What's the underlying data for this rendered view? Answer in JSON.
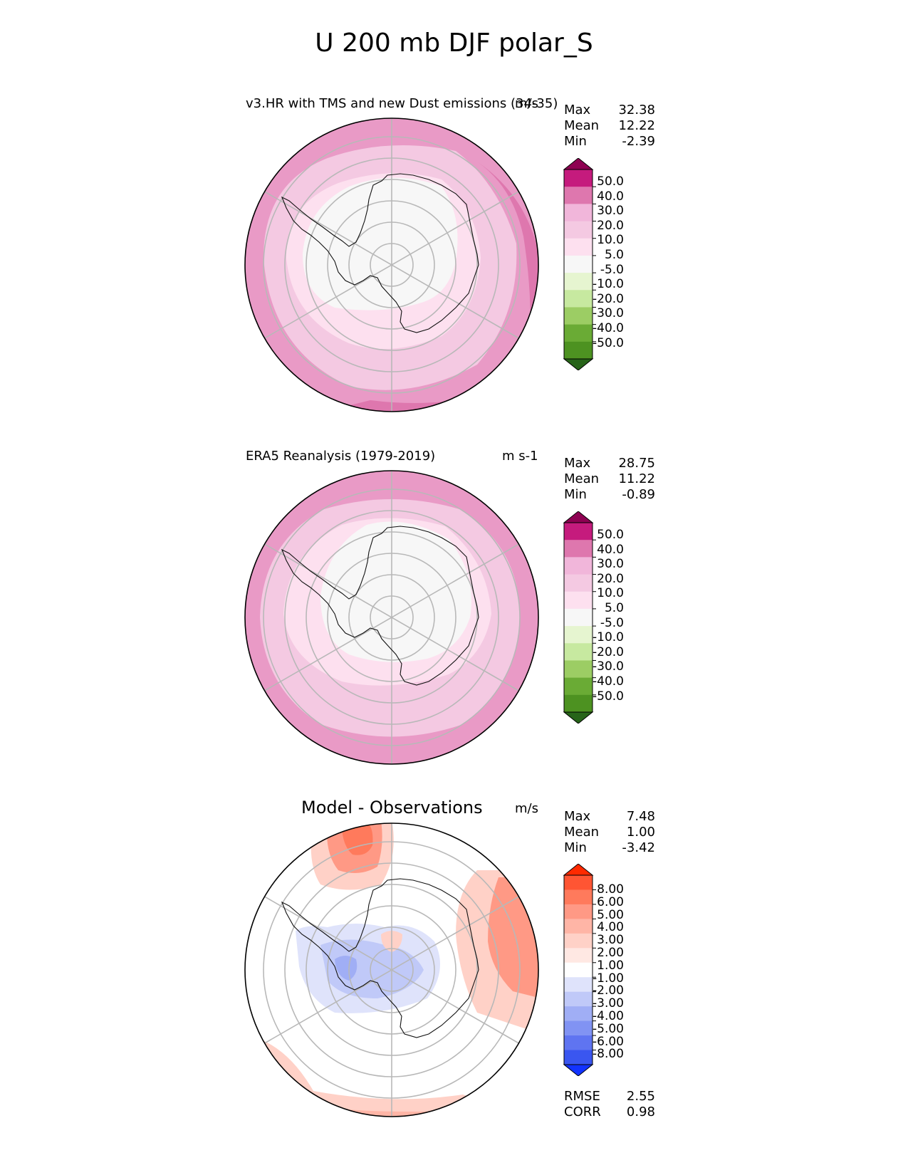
{
  "figure": {
    "title": "U 200 mb DJF polar_S"
  },
  "panels": [
    {
      "title": "v3.HR with TMS and new Dust emissions (34-35)",
      "units": "m/s",
      "stats": [
        {
          "label": "Max",
          "value": "32.38"
        },
        {
          "label": "Mean",
          "value": "12.22"
        },
        {
          "label": "Min",
          "value": "-2.39"
        }
      ]
    },
    {
      "title": "ERA5 Reanalysis (1979-2019)",
      "units": "m s-1",
      "stats": [
        {
          "label": "Max",
          "value": "28.75"
        },
        {
          "label": "Mean",
          "value": "11.22"
        },
        {
          "label": "Min",
          "value": "-0.89"
        }
      ]
    },
    {
      "title": "Model - Observations",
      "units": "m/s",
      "stats": [
        {
          "label": "Max",
          "value": "7.48"
        },
        {
          "label": "Mean",
          "value": "1.00"
        },
        {
          "label": "Min",
          "value": "-3.42"
        }
      ],
      "metrics": [
        {
          "label": "RMSE",
          "value": "2.55"
        },
        {
          "label": "CORR",
          "value": "0.98"
        }
      ]
    }
  ],
  "colorbars": {
    "field": {
      "ticks": [
        "50.0",
        "40.0",
        "30.0",
        "20.0",
        "10.0",
        "5.0",
        "-5.0",
        "-10.0",
        "-20.0",
        "-30.0",
        "-40.0",
        "-50.0"
      ],
      "colors": [
        "#8e0152",
        "#c51b7d",
        "#de77ae",
        "#f1b6da",
        "#f4c9e2",
        "#fde0ef",
        "#f7f7f7",
        "#e6f5d0",
        "#c7e9a0",
        "#9ccd64",
        "#6aab35",
        "#4d9221",
        "#276419"
      ]
    },
    "diff": {
      "ticks": [
        "8.00",
        "6.00",
        "5.00",
        "4.00",
        "3.00",
        "2.00",
        "1.00",
        "-1.00",
        "-2.00",
        "-3.00",
        "-4.00",
        "-5.00",
        "-6.00",
        "-8.00"
      ],
      "colors": [
        "#ff2a00",
        "#ff5533",
        "#ff7a5c",
        "#ff9985",
        "#ffb5a6",
        "#ffd1c7",
        "#ffe8e3",
        "#ffffff",
        "#dfe3fb",
        "#c0c9f8",
        "#a0aef5",
        "#8193f3",
        "#5f74f1",
        "#3a56f0",
        "#1233ff"
      ]
    }
  },
  "chart_data": [
    {
      "type": "heatmap",
      "projection": "south-polar-stereographic",
      "title": "v3.HR with TMS and new Dust emissions (34-35)",
      "units": "m/s",
      "stats": {
        "max": 32.38,
        "mean": 12.22,
        "min": -2.39
      },
      "contour_levels": [
        -50,
        -40,
        -30,
        -20,
        -10,
        -5,
        5,
        10,
        20,
        30,
        40,
        50
      ]
    },
    {
      "type": "heatmap",
      "projection": "south-polar-stereographic",
      "title": "ERA5 Reanalysis (1979-2019)",
      "units": "m s-1",
      "stats": {
        "max": 28.75,
        "mean": 11.22,
        "min": -0.89
      },
      "contour_levels": [
        -50,
        -40,
        -30,
        -20,
        -10,
        -5,
        5,
        10,
        20,
        30,
        40,
        50
      ]
    },
    {
      "type": "heatmap",
      "projection": "south-polar-stereographic",
      "title": "Model - Observations",
      "units": "m/s",
      "stats": {
        "max": 7.48,
        "mean": 1.0,
        "min": -3.42,
        "rmse": 2.55,
        "corr": 0.98
      },
      "contour_levels": [
        -8,
        -6,
        -5,
        -4,
        -3,
        -2,
        -1,
        1,
        2,
        3,
        4,
        5,
        6,
        8
      ]
    }
  ]
}
